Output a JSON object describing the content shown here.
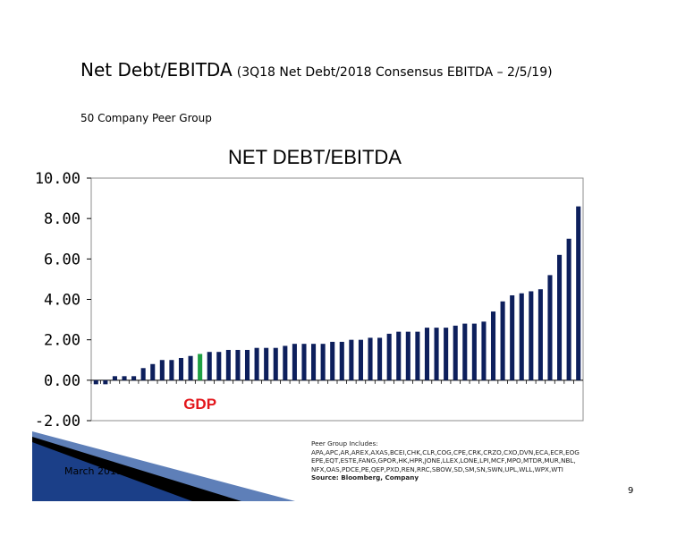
{
  "slide": {
    "title_main": "Net Debt/EBITDA",
    "title_sub": "(3Q18 Net Debt/2018 Consensus EBITDA – 2/5/19)",
    "peer_group_label": "50 Company Peer Group",
    "footnote_label": "Peer Group Includes:",
    "footnote_text": "APA,APC,AR,AREX,AXAS,BCEI,CHK,CLR,COG,CPE,CRK,CRZO,CXO,DVN,ECA,ECR,EOG EPE,EQT,ESTE,FANG,GPOR,HK,HPR,JONE,LLEX,LONE,LPI,MCF,MPO,MTDR,MUR,NBL, NFX,OAS,PDCE,PE,QEP,PXD,REN,RRC,SBOW,SD,SM,SN,SWN,UPL,WLL,WPX,WTI",
    "source": "Source: Bloomberg, Company",
    "footer_date": "March 2019",
    "page_number": "9"
  },
  "colors": {
    "bar": "#0d1f5c",
    "highlight_bar": "#1fa043",
    "highlight_label": "#e3161b",
    "axis": "#000000",
    "plot_border": "#8c8c8c"
  },
  "chart_data": {
    "type": "bar",
    "title": "NET DEBT/EBITDA",
    "xlabel": "",
    "ylabel": "",
    "ylim": [
      -2,
      10
    ],
    "yticks": [
      -2,
      0,
      2,
      4,
      6,
      8,
      10
    ],
    "ytick_labels": [
      "-2.00",
      "0.00",
      "2.00",
      "4.00",
      "6.00",
      "8.00",
      "10.00"
    ],
    "grid": false,
    "legend": "none",
    "highlight_index": 11,
    "highlight_label": "GDP",
    "values": [
      -0.2,
      -0.2,
      0.2,
      0.2,
      0.2,
      0.6,
      0.8,
      1.0,
      1.0,
      1.1,
      1.2,
      1.3,
      1.4,
      1.4,
      1.5,
      1.5,
      1.5,
      1.6,
      1.6,
      1.6,
      1.7,
      1.8,
      1.8,
      1.8,
      1.8,
      1.9,
      1.9,
      2.0,
      2.0,
      2.1,
      2.1,
      2.3,
      2.4,
      2.4,
      2.4,
      2.6,
      2.6,
      2.6,
      2.7,
      2.8,
      2.8,
      2.9,
      3.4,
      3.9,
      4.2,
      4.3,
      4.4,
      4.5,
      5.2,
      6.2,
      7.0,
      8.6
    ]
  }
}
